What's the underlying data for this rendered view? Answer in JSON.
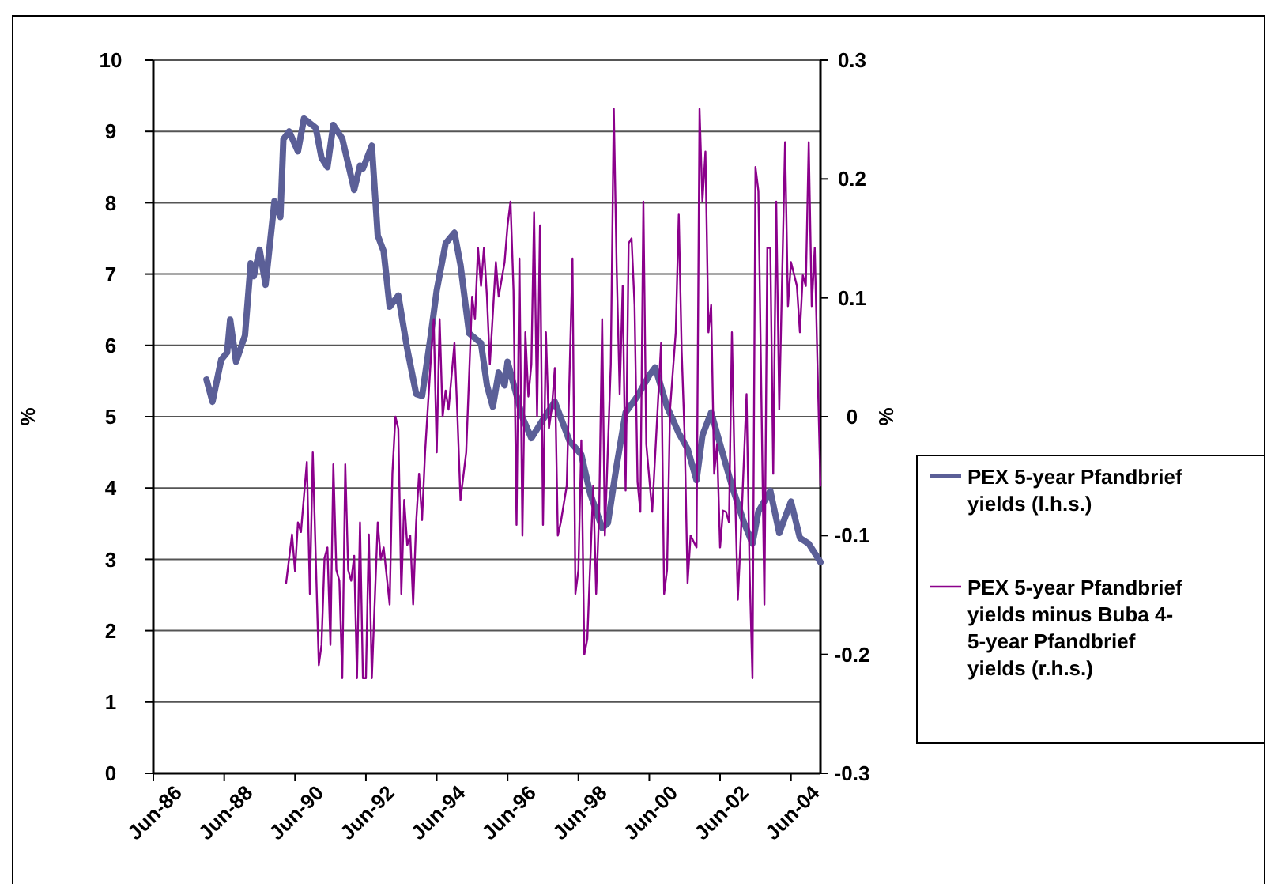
{
  "chart_data": {
    "type": "line",
    "xlabel": null,
    "ylabel": "%",
    "y2label": "%",
    "xlim": [
      "1986-06",
      "2005-04"
    ],
    "xticks": [
      {
        "value": "1986-06",
        "label": "Jun-86"
      },
      {
        "value": "1988-06",
        "label": "Jun-88"
      },
      {
        "value": "1990-06",
        "label": "Jun-90"
      },
      {
        "value": "1992-06",
        "label": "Jun-92"
      },
      {
        "value": "1994-06",
        "label": "Jun-94"
      },
      {
        "value": "1996-06",
        "label": "Jun-96"
      },
      {
        "value": "1998-06",
        "label": "Jun-98"
      },
      {
        "value": "2000-06",
        "label": "Jun-00"
      },
      {
        "value": "2002-06",
        "label": "Jun-02"
      },
      {
        "value": "2004-06",
        "label": "Jun-04"
      }
    ],
    "ylim": [
      0,
      10
    ],
    "yticks": [
      0,
      1,
      2,
      3,
      4,
      5,
      6,
      7,
      8,
      9,
      10
    ],
    "y2lim": [
      -0.3,
      0.3
    ],
    "y2ticks": [
      -0.3,
      -0.2,
      -0.1,
      0,
      0.1,
      0.2,
      0.3
    ],
    "grid": "y",
    "legend": "right",
    "marker": "none",
    "line_style": "solid",
    "series": [
      {
        "name": "PEX 5-year Pfandbrief yields (l.h.s.)",
        "color": "#5b5f97",
        "x": [
          "1987-12",
          "1988-02",
          "1988-05",
          "1988-07",
          "1988-08",
          "1988-10",
          "1989-01",
          "1989-03",
          "1989-04",
          "1989-06",
          "1989-08",
          "1989-11",
          "1990-01",
          "1990-02",
          "1990-04",
          "1990-07",
          "1990-09",
          "1991-01",
          "1991-03",
          "1991-05",
          "1991-07",
          "1991-10",
          "1992-02",
          "1992-04",
          "1992-05",
          "1992-08",
          "1992-10",
          "1992-12",
          "1993-02",
          "1993-05",
          "1993-08",
          "1993-11",
          "1994-01",
          "1994-04",
          "1994-06",
          "1994-09",
          "1994-12",
          "1995-02",
          "1995-05",
          "1995-09",
          "1995-11",
          "1996-01",
          "1996-03",
          "1996-05",
          "1996-06",
          "1996-11",
          "1997-02",
          "1997-06",
          "1997-10",
          "1998-03",
          "1998-07",
          "1998-10",
          "1999-02",
          "1999-04",
          "1999-07",
          "1999-10",
          "2000-02",
          "2000-06",
          "2000-08",
          "2000-12",
          "2001-04",
          "2001-07",
          "2001-10",
          "2001-12",
          "2002-03",
          "2002-07",
          "2002-10",
          "2003-02",
          "2003-05",
          "2003-07",
          "2003-11",
          "2004-02",
          "2004-06",
          "2004-09",
          "2004-12",
          "2005-04"
        ],
        "values": [
          5.52,
          5.21,
          5.8,
          5.9,
          6.36,
          5.77,
          6.14,
          7.15,
          6.97,
          7.34,
          6.85,
          8.02,
          7.8,
          8.89,
          9.0,
          8.72,
          9.18,
          9.05,
          8.63,
          8.5,
          9.09,
          8.9,
          8.18,
          8.52,
          8.48,
          8.8,
          7.54,
          7.32,
          6.54,
          6.7,
          5.95,
          5.32,
          5.29,
          6.14,
          6.77,
          7.43,
          7.58,
          7.13,
          6.17,
          6.03,
          5.44,
          5.14,
          5.62,
          5.44,
          5.77,
          4.99,
          4.7,
          4.96,
          5.21,
          4.66,
          4.47,
          3.92,
          3.44,
          3.51,
          4.32,
          5.06,
          5.29,
          5.58,
          5.69,
          5.14,
          4.77,
          4.55,
          4.11,
          4.74,
          5.06,
          4.47,
          4.03,
          3.52,
          3.22,
          3.67,
          3.96,
          3.37,
          3.81,
          3.3,
          3.22,
          2.96
        ]
      },
      {
        "name": "PEX 5-year Pfandbrief yields minus Buba 4-5-year Pfandbrief yields (r.h.s.)",
        "color": "#8b008b",
        "axis": "y2",
        "x": [
          "1990-03",
          "1990-05",
          "1990-06",
          "1990-07",
          "1990-08",
          "1990-10",
          "1990-11",
          "1990-12",
          "1991-02",
          "1991-03",
          "1991-04",
          "1991-05",
          "1991-06",
          "1991-07",
          "1991-08",
          "1991-09",
          "1991-10",
          "1991-11",
          "1991-12",
          "1992-01",
          "1992-02",
          "1992-03",
          "1992-04",
          "1992-05",
          "1992-06",
          "1992-07",
          "1992-08",
          "1992-10",
          "1992-11",
          "1992-12",
          "1993-02",
          "1993-03",
          "1993-04",
          "1993-05",
          "1993-06",
          "1993-07",
          "1993-08",
          "1993-09",
          "1993-10",
          "1993-11",
          "1993-12",
          "1994-01",
          "1994-02",
          "1994-04",
          "1994-05",
          "1994-06",
          "1994-07",
          "1994-08",
          "1994-09",
          "1994-10",
          "1994-12",
          "1995-01",
          "1995-02",
          "1995-04",
          "1995-06",
          "1995-07",
          "1995-08",
          "1995-09",
          "1995-10",
          "1995-11",
          "1995-12",
          "1996-02",
          "1996-03",
          "1996-05",
          "1996-06",
          "1996-07",
          "1996-08",
          "1996-09",
          "1996-10",
          "1996-11",
          "1996-12",
          "1997-01",
          "1997-02",
          "1997-03",
          "1997-04",
          "1997-05",
          "1997-06",
          "1997-07",
          "1997-08",
          "1997-09",
          "1997-10",
          "1997-11",
          "1997-12",
          "1998-02",
          "1998-04",
          "1998-05",
          "1998-06",
          "1998-07",
          "1998-08",
          "1998-09",
          "1998-11",
          "1998-12",
          "1999-01",
          "1999-02",
          "1999-03",
          "1999-05",
          "1999-06",
          "1999-07",
          "1999-08",
          "1999-09",
          "1999-10",
          "1999-11",
          "1999-12",
          "2000-01",
          "2000-02",
          "2000-03",
          "2000-04",
          "2000-05",
          "2000-07",
          "2000-10",
          "2000-11",
          "2000-12",
          "2001-01",
          "2001-03",
          "2001-04",
          "2001-05",
          "2001-06",
          "2001-07",
          "2001-08",
          "2001-10",
          "2001-11",
          "2001-12",
          "2002-01",
          "2002-02",
          "2002-03",
          "2002-04",
          "2002-05",
          "2002-06",
          "2002-07",
          "2002-08",
          "2002-09",
          "2002-10",
          "2002-11",
          "2002-12",
          "2003-01",
          "2003-03",
          "2003-04",
          "2003-05",
          "2003-06",
          "2003-07",
          "2003-09",
          "2003-10",
          "2003-11",
          "2003-12",
          "2004-01",
          "2004-02",
          "2004-04",
          "2004-05",
          "2004-06",
          "2004-08",
          "2004-09",
          "2004-10",
          "2004-11",
          "2004-12",
          "2005-01",
          "2005-02",
          "2005-03",
          "2005-04"
        ],
        "values": [
          -0.14,
          -0.099,
          -0.13,
          -0.089,
          -0.097,
          -0.038,
          -0.149,
          -0.03,
          -0.209,
          -0.192,
          -0.119,
          -0.11,
          -0.192,
          -0.04,
          -0.129,
          -0.138,
          -0.22,
          -0.04,
          -0.129,
          -0.138,
          -0.117,
          -0.22,
          -0.089,
          -0.22,
          -0.22,
          -0.099,
          -0.22,
          -0.089,
          -0.12,
          -0.11,
          -0.158,
          -0.048,
          0.0,
          -0.01,
          -0.149,
          -0.07,
          -0.108,
          -0.1,
          -0.158,
          -0.089,
          -0.048,
          -0.087,
          -0.03,
          0.048,
          0.082,
          -0.03,
          0.082,
          0.0,
          0.022,
          0.006,
          0.062,
          0.0,
          -0.07,
          -0.03,
          0.101,
          0.082,
          0.142,
          0.11,
          0.142,
          0.101,
          0.044,
          0.13,
          0.101,
          0.13,
          0.161,
          0.181,
          0.106,
          -0.091,
          0.133,
          -0.1,
          0.071,
          0.017,
          0.044,
          0.172,
          0.0,
          0.161,
          -0.091,
          0.071,
          -0.01,
          0.008,
          0.041,
          -0.1,
          -0.089,
          -0.058,
          0.133,
          -0.149,
          -0.129,
          -0.02,
          -0.2,
          -0.187,
          -0.058,
          -0.149,
          -0.08,
          0.082,
          -0.1,
          0.044,
          0.259,
          0.124,
          0.019,
          0.11,
          -0.062,
          0.146,
          0.15,
          0.094,
          -0.055,
          -0.08,
          0.181,
          -0.023,
          -0.08,
          0.062,
          -0.149,
          -0.129,
          0.006,
          0.071,
          0.17,
          0.055,
          -0.018,
          -0.14,
          -0.1,
          -0.11,
          0.259,
          0.181,
          0.223,
          0.071,
          0.094,
          -0.048,
          -0.023,
          -0.11,
          -0.079,
          -0.08,
          -0.089,
          0.071,
          -0.058,
          -0.154,
          -0.1,
          0.019,
          -0.129,
          -0.22,
          0.21,
          0.19,
          -0.158,
          0.142,
          0.142,
          -0.048,
          0.181,
          0.006,
          0.231,
          0.093,
          0.13,
          0.11,
          0.071,
          0.119,
          0.11,
          0.231,
          0.093,
          0.142,
          0.044,
          -0.058
        ]
      }
    ]
  }
}
